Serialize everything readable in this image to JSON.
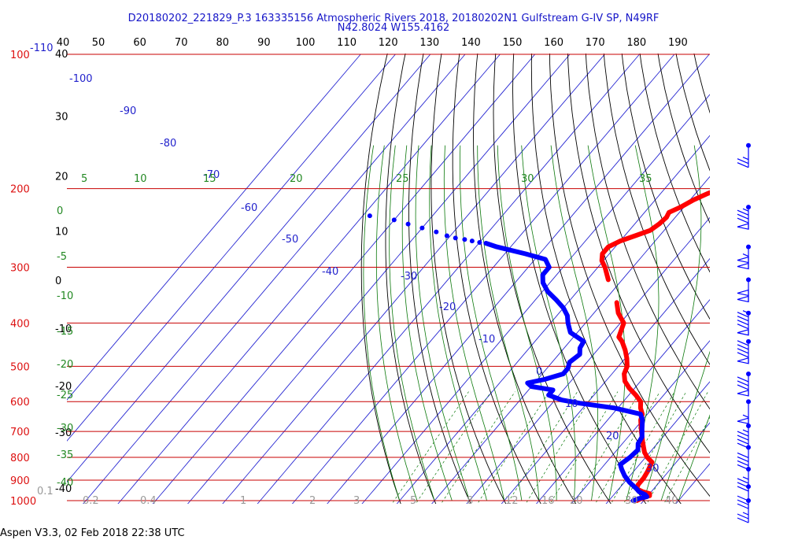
{
  "chart_data": {
    "type": "skew-t",
    "title": "D20180202_221829_P.3 163335156 Atmospheric Rivers 2018, 20180202N1 Gulfstream G-IV SP, N49RF",
    "subtitle": "N42.8024 W155.4162",
    "footer": "Aspen V3.3, 02 Feb 2018  22:38 UTC",
    "pressure_levels": [
      100,
      200,
      300,
      400,
      500,
      600,
      700,
      800,
      900,
      1000
    ],
    "pressure_range": [
      1020,
      100
    ],
    "fahrenheit_ticks": [
      40,
      50,
      60,
      70,
      80,
      90,
      100,
      110,
      120,
      130,
      140,
      150,
      160,
      170,
      180,
      190
    ],
    "left_corner_value": -110,
    "height_labels": [
      {
        "text": "40",
        "p": 100
      },
      {
        "text": "30",
        "p": 138
      },
      {
        "text": "20",
        "p": 188
      },
      {
        "text": "10",
        "p": 250
      },
      {
        "text": "0",
        "p": 322
      },
      {
        "text": "-10",
        "p": 413
      },
      {
        "text": "-20",
        "p": 555
      },
      {
        "text": "-30",
        "p": 705
      },
      {
        "text": "-40",
        "p": 940
      }
    ],
    "isotherm_labels": [
      {
        "text": "-100",
        "t": -100
      },
      {
        "text": "-90",
        "t": -90
      },
      {
        "text": "-80",
        "t": -80
      },
      {
        "text": "-70",
        "t": -70
      },
      {
        "text": "-60",
        "t": -60
      },
      {
        "text": "-50",
        "t": -50
      },
      {
        "text": "-40",
        "t": -40
      },
      {
        "text": "-30",
        "t": -30
      },
      {
        "text": "-20",
        "t": -20
      },
      {
        "text": "-10",
        "t": -10
      },
      {
        "text": "0",
        "t": 0
      },
      {
        "text": "10",
        "t": 10
      },
      {
        "text": "20",
        "t": 20
      },
      {
        "text": "30",
        "t": 30
      }
    ],
    "moist_adiabat_labels": [
      {
        "text": "5",
        "t": 5
      },
      {
        "text": "10",
        "t": 10
      },
      {
        "text": "15",
        "t": 15
      },
      {
        "text": "20",
        "t": 20
      },
      {
        "text": "25",
        "t": 25
      },
      {
        "text": "30",
        "t": 30
      },
      {
        "text": "35",
        "t": 35
      }
    ],
    "moist_adiabat_left_labels": [
      "0",
      "-5",
      "-10",
      "-15",
      "-20",
      "-25",
      "-30",
      "-35",
      "-40"
    ],
    "mixing_ratio_labels": [
      "0.1",
      "0.2",
      "0.4",
      "1",
      "2",
      "3",
      "5",
      "8",
      "12",
      "16",
      "20",
      "30",
      "40"
    ],
    "temperature_series": {
      "name": "",
      "color": "#ff0000",
      "points": [
        [
          1000,
          28.0
        ],
        [
          985,
          29.0
        ],
        [
          975,
          30.5
        ],
        [
          965,
          30.0
        ],
        [
          955,
          27.5
        ],
        [
          940,
          25.0
        ],
        [
          920,
          24.5
        ],
        [
          890,
          24.5
        ],
        [
          860,
          24.0
        ],
        [
          840,
          23.5
        ],
        [
          820,
          23.0
        ],
        [
          800,
          20.5
        ],
        [
          780,
          18.5
        ],
        [
          760,
          17.0
        ],
        [
          740,
          15.5
        ],
        [
          720,
          14.0
        ],
        [
          700,
          12.5
        ],
        [
          680,
          11.0
        ],
        [
          660,
          9.5
        ],
        [
          640,
          8.5
        ],
        [
          620,
          6.5
        ],
        [
          600,
          5.0
        ],
        [
          580,
          2.0
        ],
        [
          560,
          -1.5
        ],
        [
          540,
          -4.5
        ],
        [
          520,
          -6.5
        ],
        [
          500,
          -7.5
        ],
        [
          480,
          -9.5
        ],
        [
          460,
          -12.0
        ],
        [
          440,
          -15.0
        ],
        [
          430,
          -17.0
        ],
        [
          400,
          -19.0
        ],
        [
          380,
          -23.0
        ],
        [
          360,
          -26.0
        ],
        [
          340,
          -30.0
        ],
        [
          320,
          -34.0
        ],
        [
          300,
          -38.0
        ],
        [
          290,
          -40.5
        ],
        [
          280,
          -42.0
        ],
        [
          270,
          -42.0
        ],
        [
          262,
          -40.0
        ],
        [
          255,
          -37.0
        ],
        [
          248,
          -34.0
        ],
        [
          240,
          -33.0
        ],
        [
          232,
          -32.5
        ],
        [
          226,
          -33.0
        ],
        [
          220,
          -31.0
        ],
        [
          212,
          -29.0
        ],
        [
          205,
          -26.5
        ],
        [
          200,
          -24.0
        ],
        [
          195,
          -22.5
        ]
      ],
      "isolated_point": [
        177,
        -25.0
      ]
    },
    "dewpoint_series": {
      "name": "",
      "color": "#0000ff",
      "points": [
        [
          1000,
          27.0
        ],
        [
          990,
          28.0
        ],
        [
          980,
          30.0
        ],
        [
          970,
          29.0
        ],
        [
          955,
          26.5
        ],
        [
          940,
          25.0
        ],
        [
          910,
          21.5
        ],
        [
          880,
          18.5
        ],
        [
          850,
          16.0
        ],
        [
          830,
          14.5
        ],
        [
          800,
          15.5
        ],
        [
          770,
          16.0
        ],
        [
          745,
          14.5
        ],
        [
          720,
          14.0
        ],
        [
          690,
          12.0
        ],
        [
          660,
          10.0
        ],
        [
          640,
          8.0
        ],
        [
          620,
          -1.0
        ],
        [
          605,
          -12.0
        ],
        [
          595,
          -18.0
        ],
        [
          580,
          -23.0
        ],
        [
          565,
          -23.0
        ],
        [
          555,
          -30.0
        ],
        [
          545,
          -32.0
        ],
        [
          535,
          -28.0
        ],
        [
          520,
          -24.0
        ],
        [
          505,
          -24.0
        ],
        [
          490,
          -25.0
        ],
        [
          470,
          -24.0
        ],
        [
          455,
          -25.5
        ],
        [
          440,
          -26.0
        ],
        [
          420,
          -32.0
        ],
        [
          400,
          -35.0
        ],
        [
          385,
          -37.0
        ],
        [
          370,
          -40.0
        ],
        [
          355,
          -44.0
        ],
        [
          340,
          -48.5
        ],
        [
          325,
          -52.0
        ],
        [
          312,
          -54.0
        ],
        [
          300,
          -54.0
        ],
        [
          288,
          -57.0
        ],
        [
          280,
          -64.0
        ],
        [
          270,
          -74.0
        ],
        [
          265,
          -78.0
        ]
      ],
      "sparse_points": [
        [
          264,
          -80.0
        ],
        [
          262,
          -82.5
        ],
        [
          260,
          -85.0
        ],
        [
          258,
          -88.0
        ],
        [
          255,
          -91.0
        ],
        [
          250,
          -95.0
        ],
        [
          245,
          -100.0
        ],
        [
          240,
          -105.0
        ],
        [
          235,
          -110.0
        ],
        [
          230,
          -118.0
        ]
      ]
    },
    "wind_barbs": [
      {
        "p": 160,
        "speed_kt": 25,
        "dir_deg": 270
      },
      {
        "p": 220,
        "speed_kt": 85,
        "dir_deg": 265
      },
      {
        "p": 270,
        "speed_kt": 105,
        "dir_deg": 265
      },
      {
        "p": 320,
        "speed_kt": 100,
        "dir_deg": 265
      },
      {
        "p": 380,
        "speed_kt": 95,
        "dir_deg": 260
      },
      {
        "p": 440,
        "speed_kt": 90,
        "dir_deg": 260
      },
      {
        "p": 520,
        "speed_kt": 80,
        "dir_deg": 255
      },
      {
        "p": 600,
        "speed_kt": 55,
        "dir_deg": 250
      },
      {
        "p": 680,
        "speed_kt": 45,
        "dir_deg": 245
      },
      {
        "p": 760,
        "speed_kt": 40,
        "dir_deg": 235
      },
      {
        "p": 850,
        "speed_kt": 35,
        "dir_deg": 230
      },
      {
        "p": 930,
        "speed_kt": 30,
        "dir_deg": 225
      },
      {
        "p": 1000,
        "speed_kt": 25,
        "dir_deg": 210
      }
    ],
    "colors": {
      "isobar": "#c80000",
      "isotherm": "#2828d2",
      "dry_adiabat": "#000000",
      "moist_adiabat": "#0a780a",
      "mixing_ratio": "#0a780a",
      "pressure_label": "#dd1111",
      "isotherm_label": "#2222cc",
      "moist_label": "#228822",
      "mixing_label": "#999999",
      "barb": "#0000ff"
    }
  }
}
